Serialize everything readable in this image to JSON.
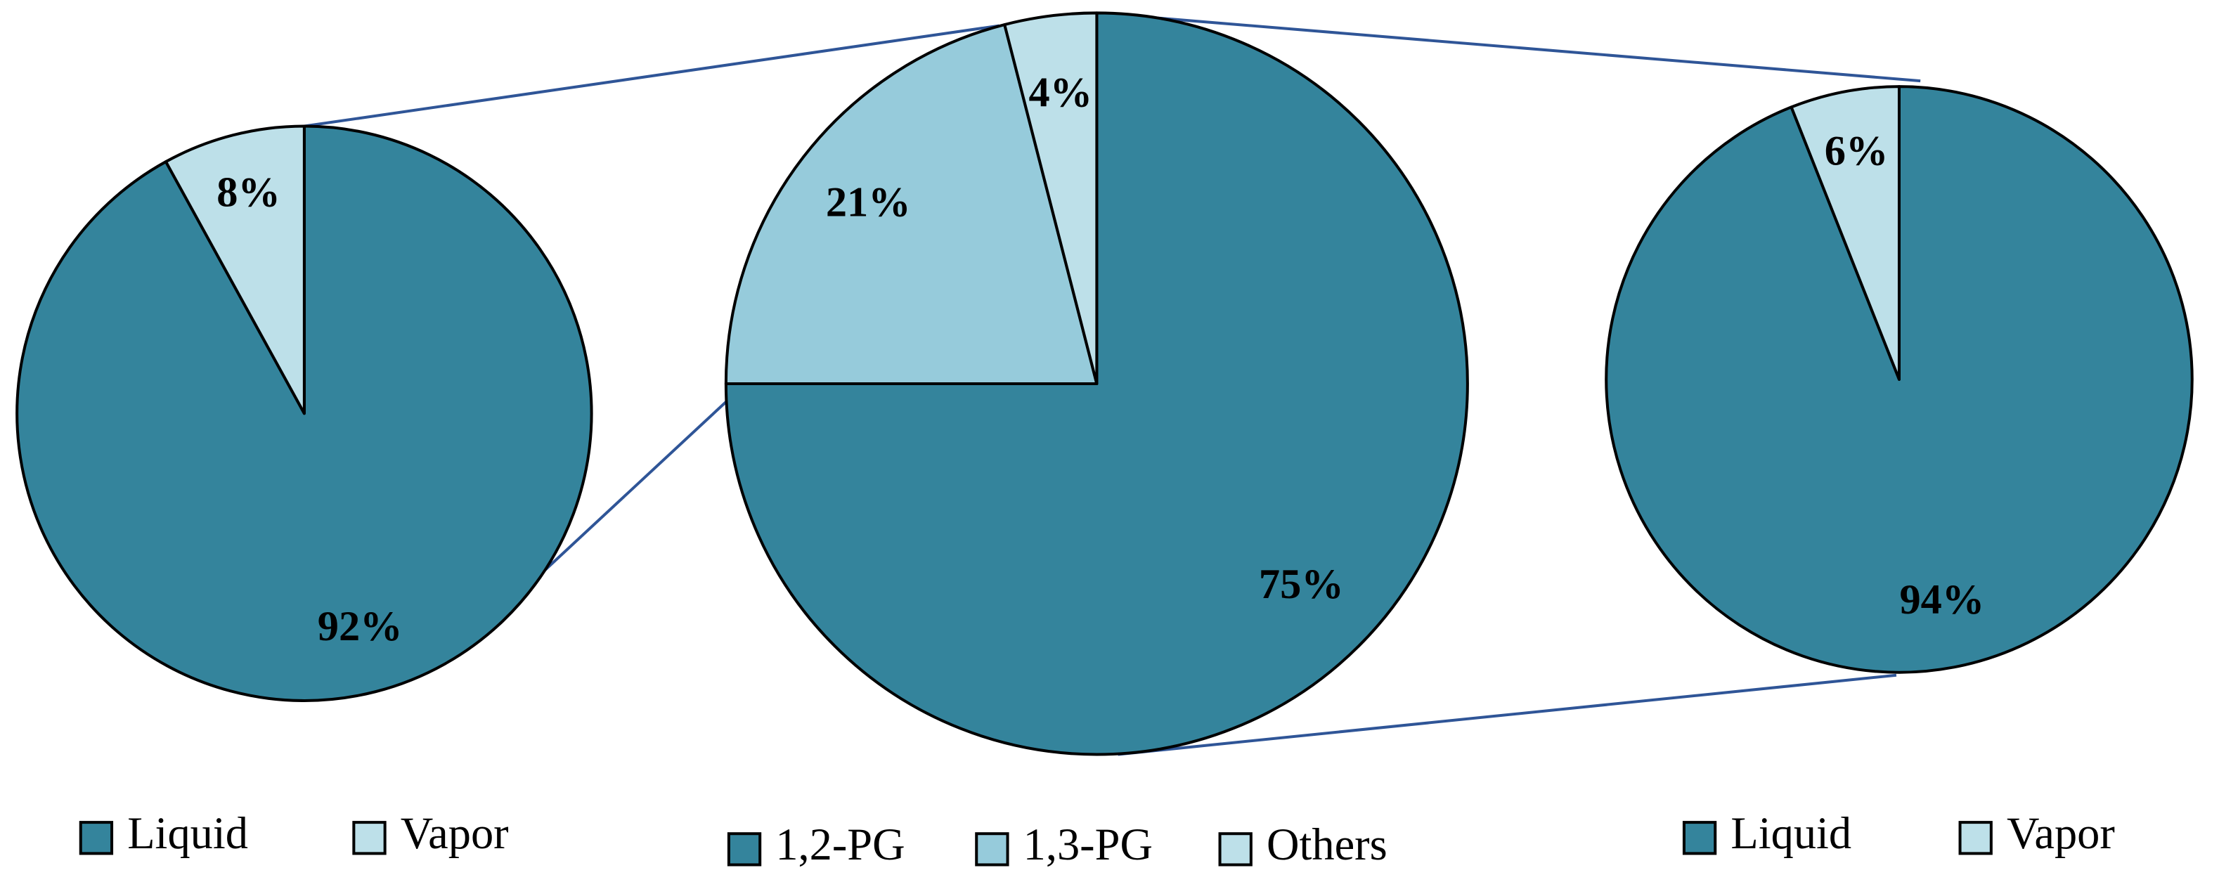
{
  "chart_data": [
    {
      "type": "pie",
      "categories": [
        "Liquid",
        "Vapor"
      ],
      "values": [
        92,
        8
      ],
      "value_labels": [
        "92%",
        "8%"
      ],
      "colors": [
        "#34849c",
        "#bde0e9"
      ],
      "legend": "bottom"
    },
    {
      "type": "pie",
      "categories": [
        "1,2-PG",
        "1,3-PG",
        "Others"
      ],
      "values": [
        75,
        21,
        4
      ],
      "value_labels": [
        "75%",
        "21%",
        "4%"
      ],
      "colors": [
        "#34849c",
        "#96cbdb",
        "#bde0e9"
      ],
      "legend": "bottom"
    },
    {
      "type": "pie",
      "categories": [
        "Liquid",
        "Vapor"
      ],
      "values": [
        94,
        6
      ],
      "value_labels": [
        "94%",
        "6%"
      ],
      "colors": [
        "#34849c",
        "#bde0e9"
      ],
      "legend": "bottom"
    }
  ]
}
